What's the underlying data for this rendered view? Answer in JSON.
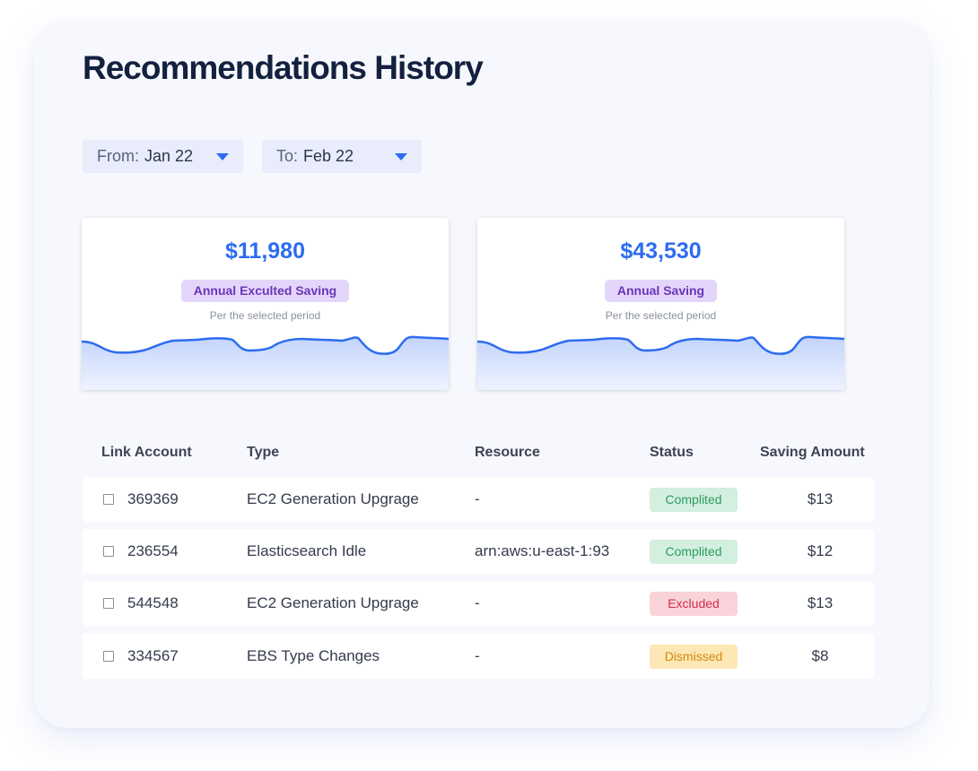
{
  "page": {
    "title": "Recommendations History"
  },
  "filters": {
    "from": {
      "label": "From:",
      "value": "Jan 22"
    },
    "to": {
      "label": "To:",
      "value": "Feb 22"
    }
  },
  "stats": [
    {
      "value": "$11,980",
      "label": "Annual Exculted Saving",
      "subtitle": "Per the selected period"
    },
    {
      "value": "$43,530",
      "label": "Annual Saving",
      "subtitle": "Per the selected period"
    }
  ],
  "table": {
    "columns": [
      "Link Account",
      "Type",
      "Resource",
      "Status",
      "Saving Amount"
    ],
    "rows": [
      {
        "account": "369369",
        "type": "EC2 Generation Upgrage",
        "resource": "-",
        "status": "Complited",
        "status_kind": "completed",
        "amount": "$13"
      },
      {
        "account": "236554",
        "type": "Elasticsearch Idle",
        "resource": "arn:aws:u-east-1:93",
        "status": "Complited",
        "status_kind": "completed",
        "amount": "$12"
      },
      {
        "account": "544548",
        "type": "EC2 Generation Upgrage",
        "resource": "-",
        "status": "Excluded",
        "status_kind": "excluded",
        "amount": "$13"
      },
      {
        "account": "334567",
        "type": "EBS Type Changes",
        "resource": "-",
        "status": "Dismissed",
        "status_kind": "dismissed",
        "amount": "$8"
      }
    ]
  },
  "colors": {
    "accent": "#2d6cf0",
    "title": "#13213f",
    "badge_bg": "#e4d6fb",
    "badge_text": "#6a36b8",
    "completed": "#2d9b60",
    "excluded": "#d22d48",
    "dismissed": "#d28a10"
  },
  "icons": {
    "filter_caret": "caret-down-icon",
    "row_checkbox": "checkbox-icon"
  }
}
